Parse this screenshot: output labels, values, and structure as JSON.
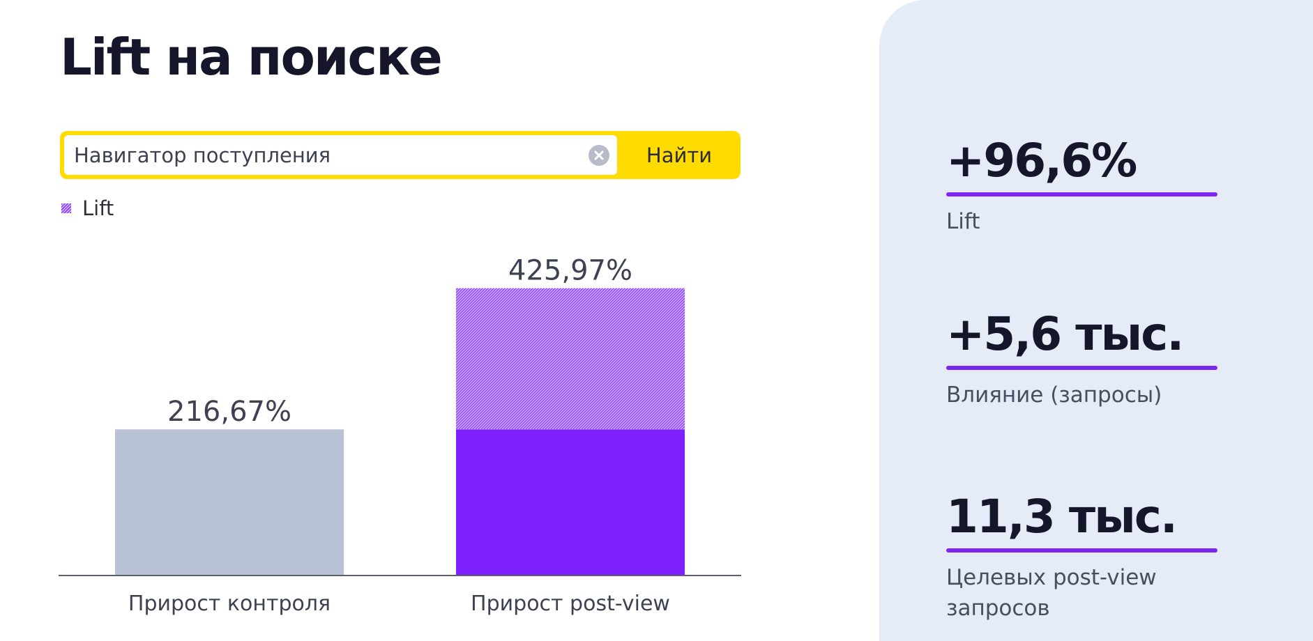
{
  "page": {
    "title": "Lift на поиске"
  },
  "search": {
    "value": "Навигатор поступления",
    "button_label": "Найти"
  },
  "legend": {
    "label": "Lift"
  },
  "colors": {
    "control_bar": "#bac3d6",
    "postview_bar": "#7f21ff",
    "lift_hatch": "#8a3dff",
    "accent_line": "#7d26f2",
    "search_yellow": "#ffdb00",
    "panel_bg": "#e5ebf7"
  },
  "chart_data": {
    "type": "bar",
    "stacked": true,
    "categories": [
      "Прирост контроля",
      "Прирост post-view"
    ],
    "series": [
      {
        "values": [
          216.67,
          216.67
        ],
        "colors": [
          "#bac3d6",
          "#7f21ff"
        ],
        "pattern": "solid"
      },
      {
        "name": "Lift",
        "values": [
          0,
          209.3
        ],
        "pattern": "hatched"
      }
    ],
    "totals": [
      216.67,
      425.97
    ],
    "data_labels": [
      "216,67%",
      "425,97%"
    ],
    "ylim": [
      0,
      470
    ],
    "grid": false,
    "legend_position": "top-left",
    "xlabel": "",
    "ylabel": ""
  },
  "metrics": [
    {
      "value": "+96,6%",
      "label": "Lift"
    },
    {
      "value": "+5,6 тыс.",
      "label": "Влияние (запросы)"
    },
    {
      "value": "11,3 тыс.",
      "label": "Целевых post-view запросов"
    }
  ]
}
